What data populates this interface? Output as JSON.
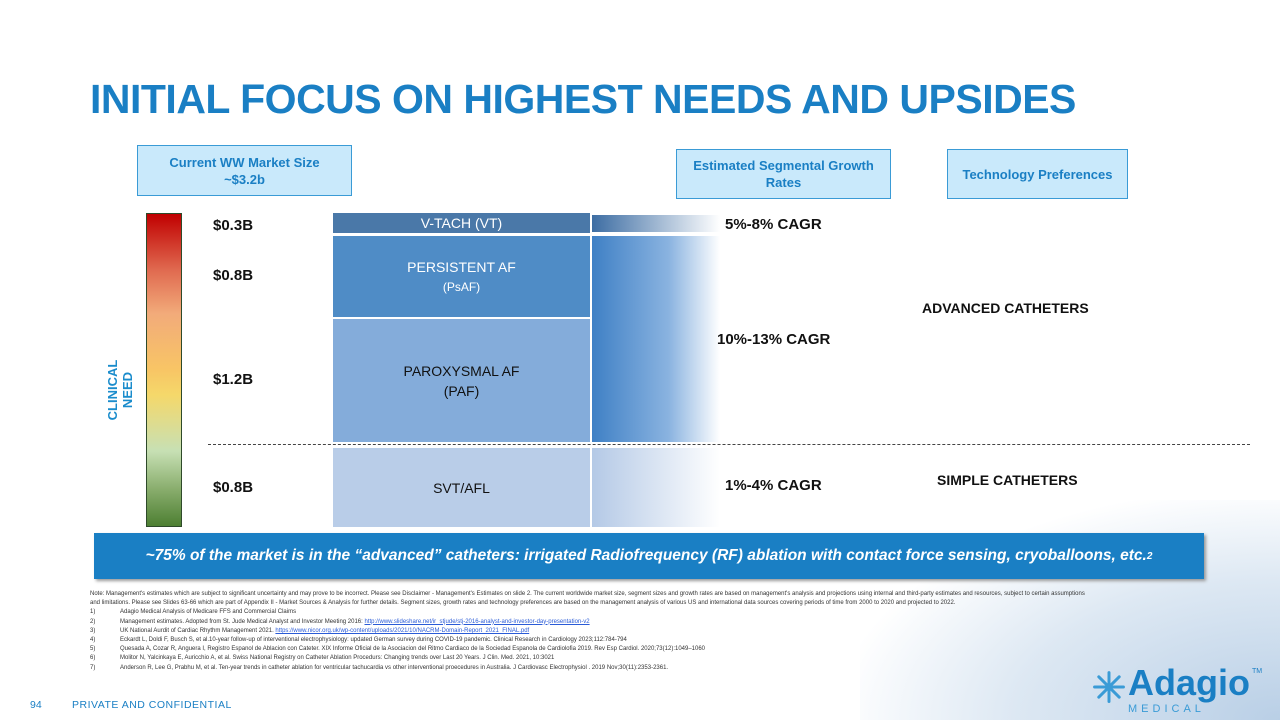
{
  "title": "INITIAL FOCUS ON HIGHEST NEEDS AND UPSIDES",
  "headers": {
    "market_size_line1": "Current WW Market Size",
    "market_size_line2": "~$3.2b",
    "growth_line1": "Estimated Segmental Growth",
    "growth_line2": "Rates",
    "tech": "Technology Preferences"
  },
  "axis_label": "CLINICAL NEED",
  "segments": [
    {
      "name": "V-TACH (VT)",
      "sub": "",
      "value": "$0.3B",
      "cagr": "5%-8% CAGR"
    },
    {
      "name": "PERSISTENT AF",
      "sub": "(PsAF)",
      "value": "$0.8B",
      "cagr": "10%-13% CAGR"
    },
    {
      "name": "PAROXYSMAL AF",
      "sub": "(PAF)",
      "value": "$1.2B"
    },
    {
      "name": "SVT/AFL",
      "sub": "",
      "value": "$0.8B",
      "cagr": "1%-4% CAGR"
    }
  ],
  "tech_prefs": {
    "advanced": "ADVANCED CATHETERS",
    "simple": "SIMPLE CATHETERS"
  },
  "banner": {
    "text": "~75% of the market is in the “advanced” catheters: irrigated Radiofrequency (RF) ablation with contact force sensing, cryoballoons, etc.",
    "sup": "2"
  },
  "notes": {
    "intro": "Note: Management's estimates which are subject to significant uncertainty and may prove to be incorrect. Please see Disclaimer - Management's Estimates on slide 2. The current worldwide market size, segment sizes and growth rates are based on management's analysis and projections using internal and third-party estimates and resources, subject to certain assumptions and limitations. Please see Slides 63-66 which are part of Appendix II - Market Sources & Analysis for further details. Segment sizes, growth rates and technology preferences are based on the management analysis of various US and international data sources covering periods of time from 2000 to 2020 and projected to 2022.",
    "refs": [
      {
        "num": "1)",
        "text": "Adagio Medical Analysis of Medicare FFS and Commercial Claims",
        "link": ""
      },
      {
        "num": "2)",
        "text": "Management estimates. Adopted from St. Jude Medical Analyst and Investor Meeting 2016: ",
        "link": "http://www.slideshare.net/ir_stjude/stj-2016-analyst-and-investor-day-presentation-v2"
      },
      {
        "num": "3)",
        "text": "UK National Aurdit of Cardiac Rhythm Management 2021. ",
        "link": "https://www.nicor.org.uk/wp-content/uploads/2021/10/NACRM-Domain-Report_2021_FINAL.pdf"
      },
      {
        "num": "4)",
        "text": "Eckardt L, Doldi F, Busch S, et al.10-year follow-up of interventional electrophysiology: updated German survey during COVID-19 pandemic. Clinical Research in Cardiology 2023;112:784-794",
        "link": ""
      },
      {
        "num": "5)",
        "text": "Quesada A, Cozar R, Anguera I, Registro Espanol de Ablacion con Cateter. XIX Informe Oficial de la Asociacion del Ritmo Cardiaco de la Sociedad Espanola de Cardiolofia 2019. Rev Esp Cardiol. 2020;73(12):1049–1060",
        "link": ""
      },
      {
        "num": "6)",
        "text": "Molitor N, Yalcinkaya E, Auricchio A, et al. Swiss National Registry on Catheter Ablation Procedurs: Changing trends over Last 20 Years. J Clin. Med. 2021, 10:3021",
        "link": ""
      },
      {
        "num": "7)",
        "text": "Anderson R, Lee G, Prabhu M, et al.  Ten-year trends in catheter ablation for ventricular tachucardia vs other interventional proecedures in Australia. J Cardiovasc Electrophysiol . 2019 Nov;30(11):2353-2361.",
        "link": ""
      }
    ]
  },
  "footer": {
    "page": "94",
    "confidential": "PRIVATE AND CONFIDENTIAL"
  },
  "logo": {
    "name": "Adagio",
    "sub": "MEDICAL",
    "tm": "TM"
  }
}
